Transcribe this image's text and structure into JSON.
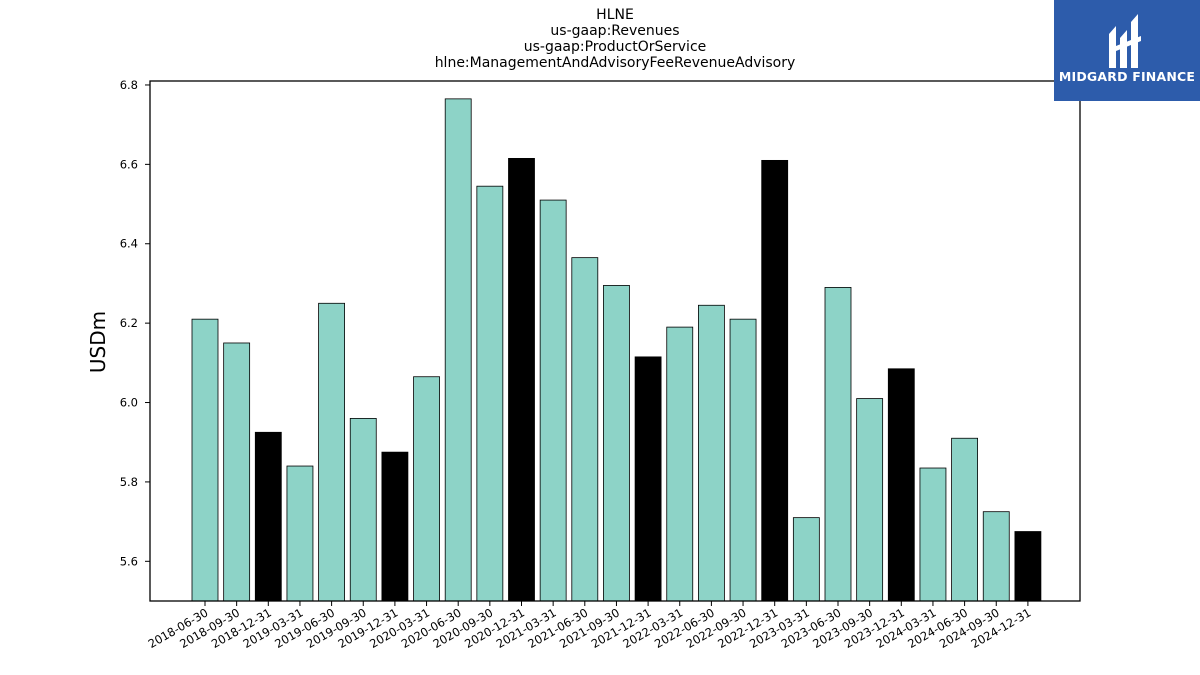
{
  "chart_data": {
    "type": "bar",
    "title": [
      "HLNE",
      "us-gaap:Revenues",
      "us-gaap:ProductOrService",
      "hlne:ManagementAndAdvisoryFeeRevenueAdvisory"
    ],
    "ylabel": "USDm",
    "xlabel": "",
    "ylim": [
      5.5,
      6.81
    ],
    "yticks": [
      "5.6",
      "5.8",
      "6.0",
      "6.2",
      "6.4",
      "6.6",
      "6.8"
    ],
    "categories": [
      "2018-06-30",
      "2018-09-30",
      "2018-12-31",
      "2019-03-31",
      "2019-06-30",
      "2019-09-30",
      "2019-12-31",
      "2020-03-31",
      "2020-06-30",
      "2020-09-30",
      "2020-12-31",
      "2021-03-31",
      "2021-06-30",
      "2021-09-30",
      "2021-12-31",
      "2022-03-31",
      "2022-06-30",
      "2022-09-30",
      "2022-12-31",
      "2023-03-31",
      "2023-06-30",
      "2023-09-30",
      "2023-12-31",
      "2024-03-31",
      "2024-06-30",
      "2024-09-30",
      "2024-12-31"
    ],
    "values": [
      6.21,
      6.15,
      5.925,
      5.84,
      6.25,
      5.96,
      5.875,
      6.065,
      6.765,
      6.545,
      6.615,
      6.51,
      6.365,
      6.295,
      6.115,
      6.19,
      6.245,
      6.21,
      6.61,
      5.71,
      6.29,
      6.01,
      6.085,
      5.835,
      5.91,
      5.725,
      5.675
    ],
    "bar_colors": [
      "#8dd3c7",
      "#8dd3c7",
      "#000000",
      "#8dd3c7",
      "#8dd3c7",
      "#8dd3c7",
      "#000000",
      "#8dd3c7",
      "#8dd3c7",
      "#8dd3c7",
      "#000000",
      "#8dd3c7",
      "#8dd3c7",
      "#8dd3c7",
      "#000000",
      "#8dd3c7",
      "#8dd3c7",
      "#8dd3c7",
      "#000000",
      "#8dd3c7",
      "#8dd3c7",
      "#8dd3c7",
      "#000000",
      "#8dd3c7",
      "#8dd3c7",
      "#8dd3c7",
      "#000000"
    ],
    "grid": false
  },
  "logo": {
    "text": "MIDGARD FINANCE",
    "color": "#2d5cab"
  }
}
